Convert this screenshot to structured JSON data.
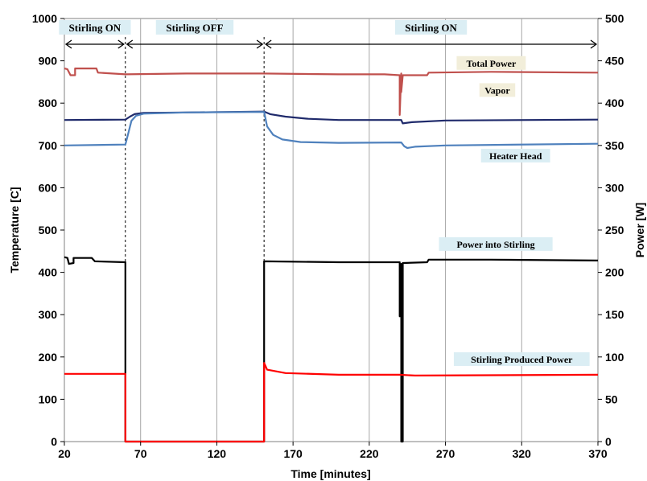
{
  "chart_data": {
    "type": "line",
    "xlabel": "Time [minutes]",
    "ylabel": "Temperature [C]",
    "y2label": "Power [W]",
    "xlim": [
      20,
      370
    ],
    "ylim": [
      0,
      1000
    ],
    "y2lim": [
      0,
      500
    ],
    "x_ticks": [
      20,
      70,
      120,
      170,
      220,
      270,
      320,
      370
    ],
    "y_ticks": [
      0,
      100,
      200,
      300,
      400,
      500,
      600,
      700,
      800,
      900,
      1000
    ],
    "y2_ticks": [
      0,
      50,
      100,
      150,
      200,
      250,
      300,
      350,
      400,
      450,
      500
    ],
    "grid": "vertical",
    "phases": [
      {
        "label": "Stirling ON",
        "x_start": 20,
        "x_end": 60
      },
      {
        "label": "Stirling OFF",
        "x_start": 60,
        "x_end": 151
      },
      {
        "label": "Stirling ON",
        "x_start": 151,
        "x_end": 370
      }
    ],
    "series": [
      {
        "name": "Total Power",
        "axis": "right",
        "color": "#c0504d",
        "label_at": [
          300,
          447
        ],
        "points": [
          [
            20,
            441
          ],
          [
            22,
            440
          ],
          [
            24,
            433
          ],
          [
            27,
            433
          ],
          [
            27,
            441
          ],
          [
            41,
            441
          ],
          [
            42,
            436
          ],
          [
            60,
            434
          ],
          [
            100,
            435
          ],
          [
            150,
            435
          ],
          [
            200,
            434
          ],
          [
            230,
            434
          ],
          [
            240,
            433
          ],
          [
            240,
            386
          ],
          [
            241,
            435
          ],
          [
            241,
            413
          ],
          [
            242,
            433
          ],
          [
            258,
            433
          ],
          [
            259,
            436
          ],
          [
            300,
            437
          ],
          [
            370,
            436
          ]
        ]
      },
      {
        "name": "Vapor",
        "axis": "left",
        "color": "#1f2a6b",
        "label_at": [
          304,
          830
        ],
        "points": [
          [
            20,
            760
          ],
          [
            60,
            761
          ],
          [
            63,
            768
          ],
          [
            66,
            774
          ],
          [
            72,
            777
          ],
          [
            100,
            778
          ],
          [
            151,
            780
          ],
          [
            155,
            774
          ],
          [
            165,
            768
          ],
          [
            180,
            763
          ],
          [
            200,
            760
          ],
          [
            241,
            760
          ],
          [
            242,
            752
          ],
          [
            248,
            755
          ],
          [
            270,
            759
          ],
          [
            370,
            761
          ]
        ]
      },
      {
        "name": "Heater Head",
        "axis": "left",
        "color": "#4f81bd",
        "label_at": [
          316,
          675
        ],
        "points": [
          [
            20,
            700
          ],
          [
            60,
            702
          ],
          [
            62,
            730
          ],
          [
            64,
            758
          ],
          [
            67,
            770
          ],
          [
            72,
            775
          ],
          [
            100,
            778
          ],
          [
            151,
            779
          ],
          [
            153,
            745
          ],
          [
            157,
            725
          ],
          [
            163,
            714
          ],
          [
            175,
            708
          ],
          [
            200,
            706
          ],
          [
            241,
            707
          ],
          [
            243,
            698
          ],
          [
            245,
            694
          ],
          [
            250,
            697
          ],
          [
            270,
            700
          ],
          [
            370,
            704
          ]
        ]
      },
      {
        "name": "Power into Stirling",
        "axis": "right",
        "color": "#000000",
        "label_at": [
          303,
          233
        ],
        "points": [
          [
            20,
            218
          ],
          [
            22,
            217
          ],
          [
            23,
            210
          ],
          [
            26,
            211
          ],
          [
            26,
            217
          ],
          [
            38,
            217
          ],
          [
            40,
            213
          ],
          [
            60,
            212
          ],
          [
            60,
            0
          ],
          [
            151,
            0
          ],
          [
            151,
            213
          ],
          [
            200,
            212
          ],
          [
            240,
            212
          ],
          [
            240,
            148
          ],
          [
            241,
            210
          ],
          [
            241,
            0
          ],
          [
            242,
            0
          ],
          [
            242,
            211
          ],
          [
            258,
            212
          ],
          [
            259,
            215
          ],
          [
            300,
            215
          ],
          [
            370,
            214
          ]
        ]
      },
      {
        "name": "Stirling Produced Power",
        "axis": "right",
        "color": "#ff0000",
        "label_at": [
          320,
          97
        ],
        "points": [
          [
            20,
            80
          ],
          [
            60,
            80
          ],
          [
            60,
            0
          ],
          [
            151,
            0
          ],
          [
            151,
            93
          ],
          [
            153,
            85
          ],
          [
            165,
            81
          ],
          [
            200,
            79
          ],
          [
            240,
            79
          ],
          [
            250,
            78
          ],
          [
            370,
            79
          ]
        ]
      }
    ]
  }
}
